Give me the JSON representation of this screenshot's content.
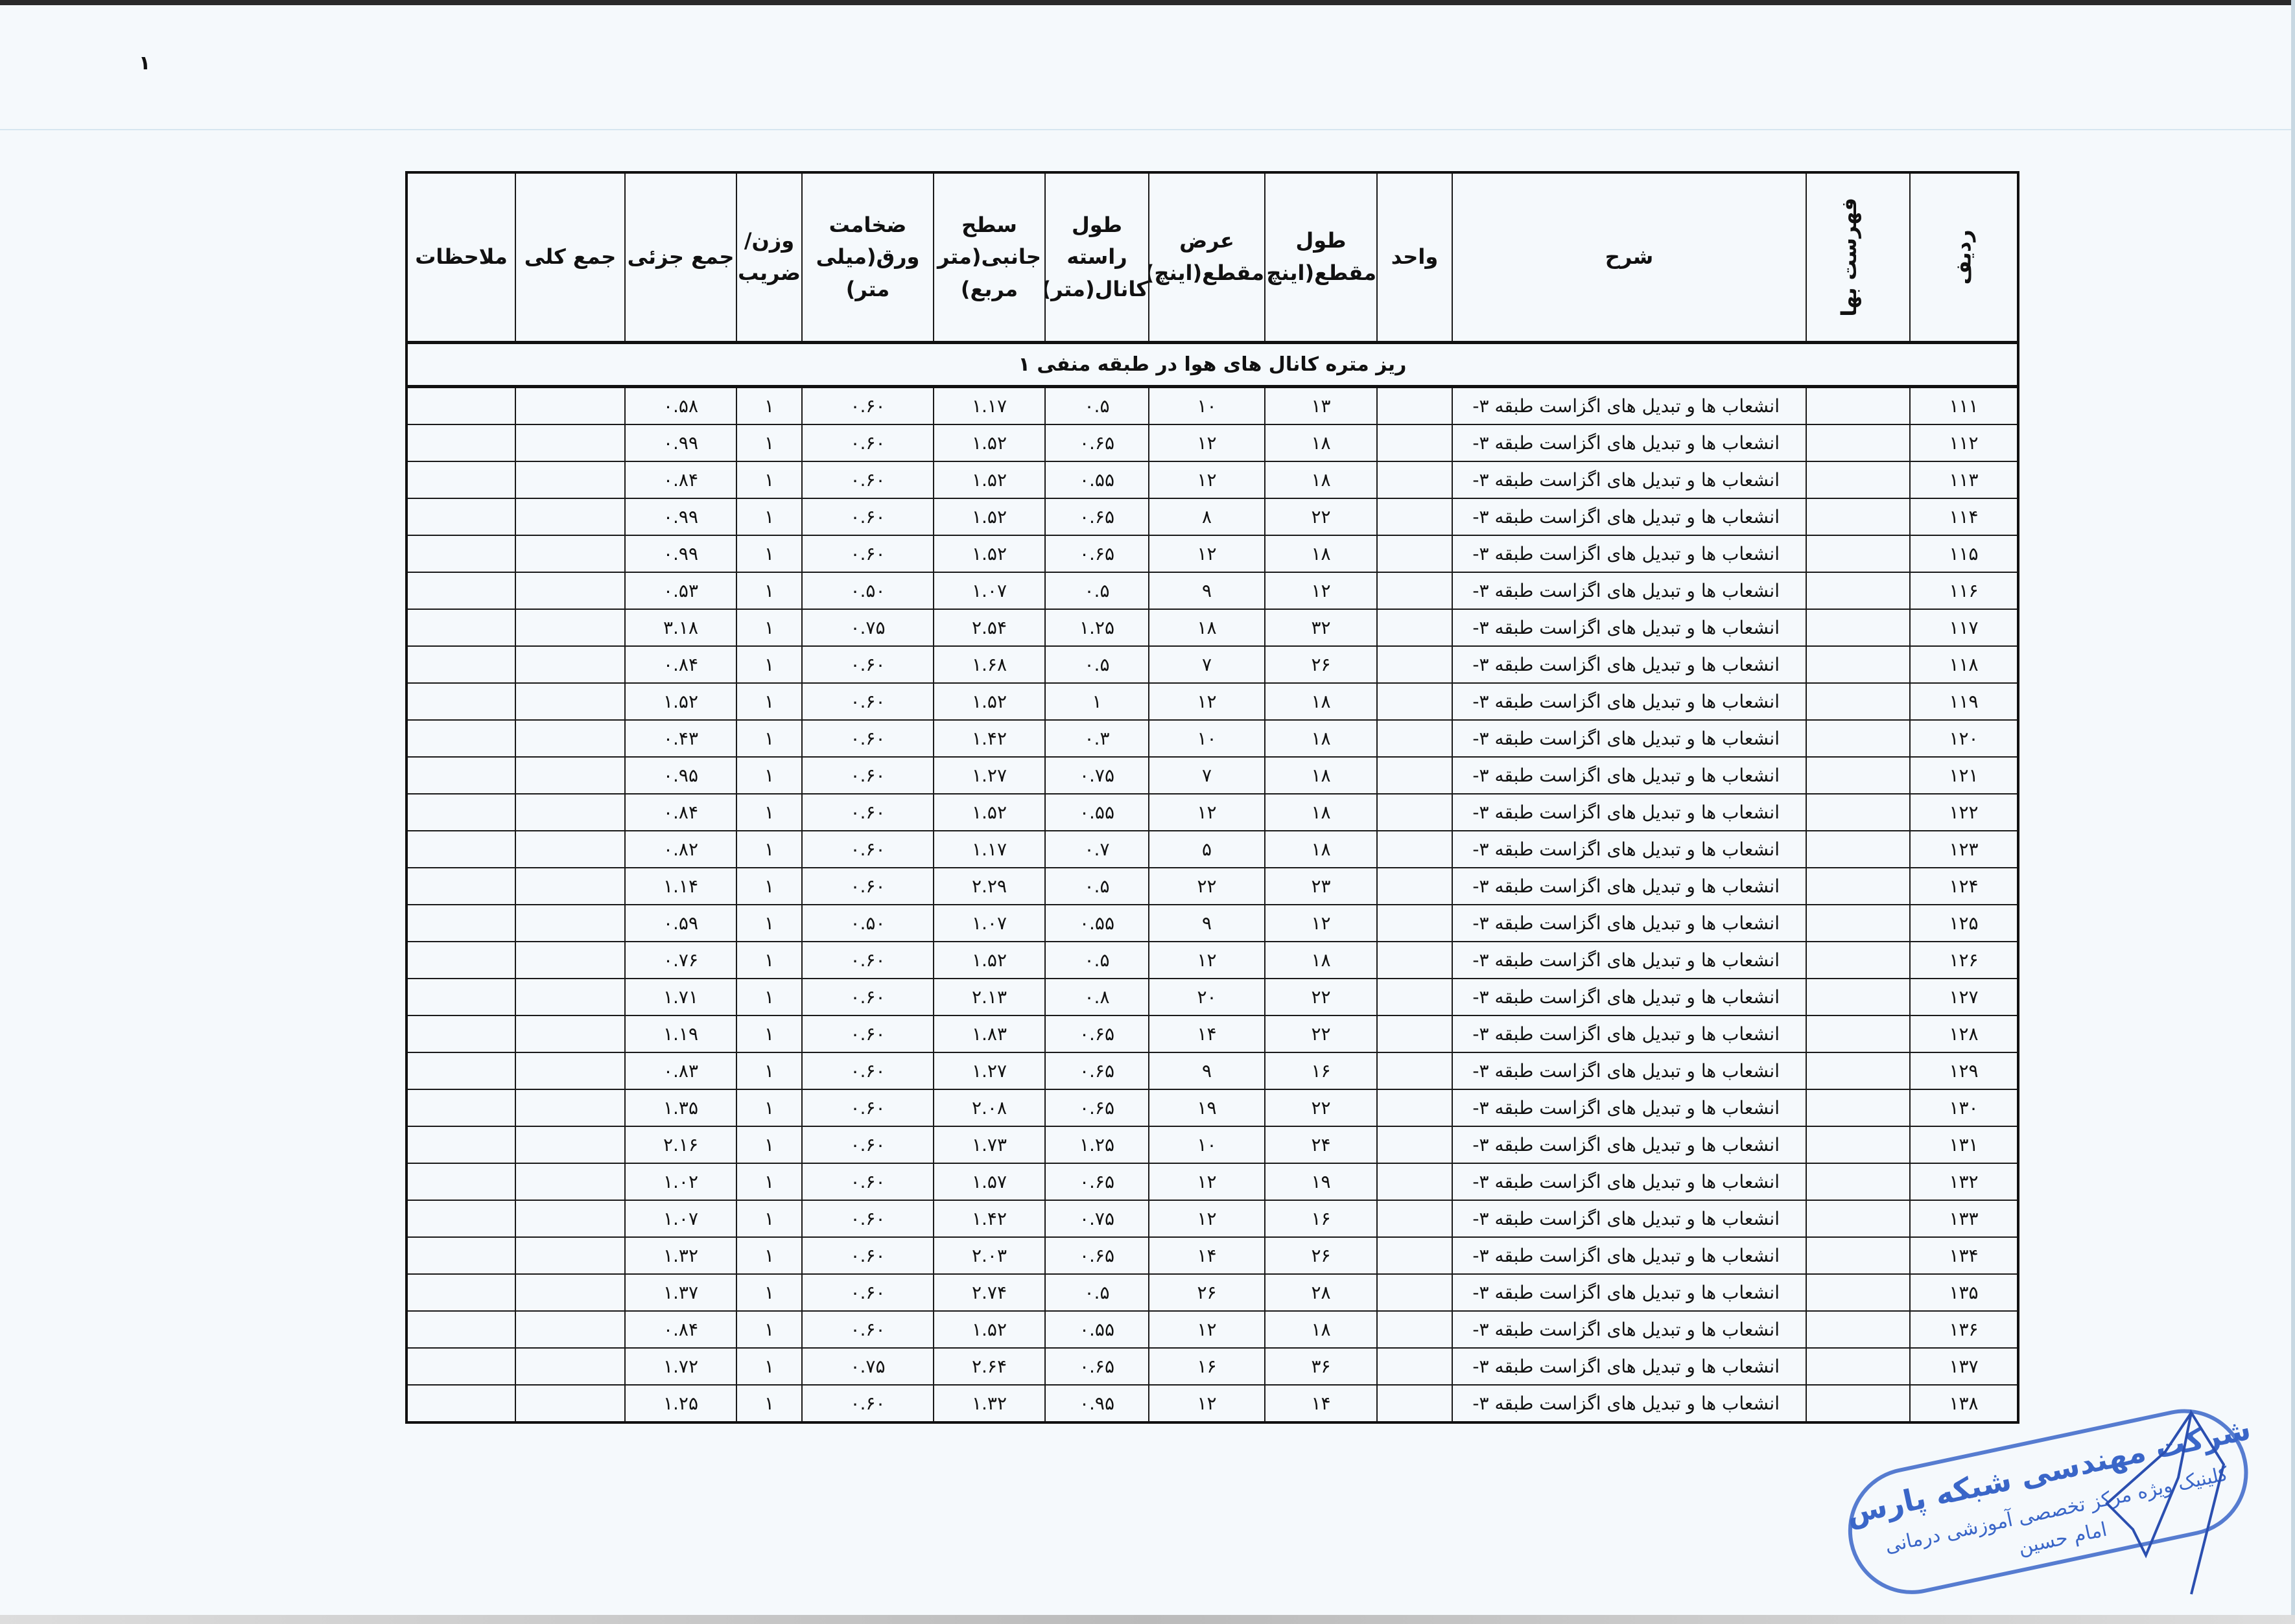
{
  "page_mark": "۱",
  "table": {
    "headers": {
      "radif": "ردیف",
      "fehrest_baha": "فهرست بها",
      "sharh": "شرح",
      "vahed": "واحد",
      "tool_maghta": "طول مقطع(اینچ)",
      "arz_maghta": "عرض مقطع(اینچ)",
      "tool_raste": "طول راسته کانال(متر)",
      "sath_janebi": "سطح جانبی(متر مربع)",
      "zekhamat": "ضخامت ورق(میلی متر)",
      "vazn_zarib": "وزن/ ضریب",
      "jam_jozi": "جمع جزئی",
      "jam_koli": "جمع کلی",
      "molahezat": "ملاحظات"
    },
    "section_title": "ریز متره کانال های هوا در طبقه منفی ۱",
    "rows": [
      [
        "۱۱۱",
        "انشعاب ها و تبدیل های اگزاست طبقه ۳-",
        "۱۳",
        "۱۰",
        "۰.۵",
        "۱.۱۷",
        "۰.۶۰",
        "۱",
        "۰.۵۸"
      ],
      [
        "۱۱۲",
        "انشعاب ها و تبدیل های اگزاست طبقه ۳-",
        "۱۸",
        "۱۲",
        "۰.۶۵",
        "۱.۵۲",
        "۰.۶۰",
        "۱",
        "۰.۹۹"
      ],
      [
        "۱۱۳",
        "انشعاب ها و تبدیل های اگزاست طبقه ۳-",
        "۱۸",
        "۱۲",
        "۰.۵۵",
        "۱.۵۲",
        "۰.۶۰",
        "۱",
        "۰.۸۴"
      ],
      [
        "۱۱۴",
        "انشعاب ها و تبدیل های اگزاست طبقه ۳-",
        "۲۲",
        "۸",
        "۰.۶۵",
        "۱.۵۲",
        "۰.۶۰",
        "۱",
        "۰.۹۹"
      ],
      [
        "۱۱۵",
        "انشعاب ها و تبدیل های اگزاست طبقه ۳-",
        "۱۸",
        "۱۲",
        "۰.۶۵",
        "۱.۵۲",
        "۰.۶۰",
        "۱",
        "۰.۹۹"
      ],
      [
        "۱۱۶",
        "انشعاب ها و تبدیل های اگزاست طبقه ۳-",
        "۱۲",
        "۹",
        "۰.۵",
        "۱.۰۷",
        "۰.۵۰",
        "۱",
        "۰.۵۳"
      ],
      [
        "۱۱۷",
        "انشعاب ها و تبدیل های اگزاست طبقه ۳-",
        "۳۲",
        "۱۸",
        "۱.۲۵",
        "۲.۵۴",
        "۰.۷۵",
        "۱",
        "۳.۱۸"
      ],
      [
        "۱۱۸",
        "انشعاب ها و تبدیل های اگزاست طبقه ۳-",
        "۲۶",
        "۷",
        "۰.۵",
        "۱.۶۸",
        "۰.۶۰",
        "۱",
        "۰.۸۴"
      ],
      [
        "۱۱۹",
        "انشعاب ها و تبدیل های اگزاست طبقه ۳-",
        "۱۸",
        "۱۲",
        "۱",
        "۱.۵۲",
        "۰.۶۰",
        "۱",
        "۱.۵۲"
      ],
      [
        "۱۲۰",
        "انشعاب ها و تبدیل های اگزاست طبقه ۳-",
        "۱۸",
        "۱۰",
        "۰.۳",
        "۱.۴۲",
        "۰.۶۰",
        "۱",
        "۰.۴۳"
      ],
      [
        "۱۲۱",
        "انشعاب ها و تبدیل های اگزاست طبقه ۳-",
        "۱۸",
        "۷",
        "۰.۷۵",
        "۱.۲۷",
        "۰.۶۰",
        "۱",
        "۰.۹۵"
      ],
      [
        "۱۲۲",
        "انشعاب ها و تبدیل های اگزاست طبقه ۳-",
        "۱۸",
        "۱۲",
        "۰.۵۵",
        "۱.۵۲",
        "۰.۶۰",
        "۱",
        "۰.۸۴"
      ],
      [
        "۱۲۳",
        "انشعاب ها و تبدیل های اگزاست طبقه ۳-",
        "۱۸",
        "۵",
        "۰.۷",
        "۱.۱۷",
        "۰.۶۰",
        "۱",
        "۰.۸۲"
      ],
      [
        "۱۲۴",
        "انشعاب ها و تبدیل های اگزاست طبقه ۳-",
        "۲۳",
        "۲۲",
        "۰.۵",
        "۲.۲۹",
        "۰.۶۰",
        "۱",
        "۱.۱۴"
      ],
      [
        "۱۲۵",
        "انشعاب ها و تبدیل های اگزاست طبقه ۳-",
        "۱۲",
        "۹",
        "۰.۵۵",
        "۱.۰۷",
        "۰.۵۰",
        "۱",
        "۰.۵۹"
      ],
      [
        "۱۲۶",
        "انشعاب ها و تبدیل های اگزاست طبقه ۳-",
        "۱۸",
        "۱۲",
        "۰.۵",
        "۱.۵۲",
        "۰.۶۰",
        "۱",
        "۰.۷۶"
      ],
      [
        "۱۲۷",
        "انشعاب ها و تبدیل های اگزاست طبقه ۳-",
        "۲۲",
        "۲۰",
        "۰.۸",
        "۲.۱۳",
        "۰.۶۰",
        "۱",
        "۱.۷۱"
      ],
      [
        "۱۲۸",
        "انشعاب ها و تبدیل های اگزاست طبقه ۳-",
        "۲۲",
        "۱۴",
        "۰.۶۵",
        "۱.۸۳",
        "۰.۶۰",
        "۱",
        "۱.۱۹"
      ],
      [
        "۱۲۹",
        "انشعاب ها و تبدیل های اگزاست طبقه ۳-",
        "۱۶",
        "۹",
        "۰.۶۵",
        "۱.۲۷",
        "۰.۶۰",
        "۱",
        "۰.۸۳"
      ],
      [
        "۱۳۰",
        "انشعاب ها و تبدیل های اگزاست طبقه ۳-",
        "۲۲",
        "۱۹",
        "۰.۶۵",
        "۲.۰۸",
        "۰.۶۰",
        "۱",
        "۱.۳۵"
      ],
      [
        "۱۳۱",
        "انشعاب ها و تبدیل های اگزاست طبقه ۳-",
        "۲۴",
        "۱۰",
        "۱.۲۵",
        "۱.۷۳",
        "۰.۶۰",
        "۱",
        "۲.۱۶"
      ],
      [
        "۱۳۲",
        "انشعاب ها و تبدیل های اگزاست طبقه ۳-",
        "۱۹",
        "۱۲",
        "۰.۶۵",
        "۱.۵۷",
        "۰.۶۰",
        "۱",
        "۱.۰۲"
      ],
      [
        "۱۳۳",
        "انشعاب ها و تبدیل های اگزاست طبقه ۳-",
        "۱۶",
        "۱۲",
        "۰.۷۵",
        "۱.۴۲",
        "۰.۶۰",
        "۱",
        "۱.۰۷"
      ],
      [
        "۱۳۴",
        "انشعاب ها و تبدیل های اگزاست طبقه ۳-",
        "۲۶",
        "۱۴",
        "۰.۶۵",
        "۲.۰۳",
        "۰.۶۰",
        "۱",
        "۱.۳۲"
      ],
      [
        "۱۳۵",
        "انشعاب ها و تبدیل های اگزاست طبقه ۳-",
        "۲۸",
        "۲۶",
        "۰.۵",
        "۲.۷۴",
        "۰.۶۰",
        "۱",
        "۱.۳۷"
      ],
      [
        "۱۳۶",
        "انشعاب ها و تبدیل های اگزاست طبقه ۳-",
        "۱۸",
        "۱۲",
        "۰.۵۵",
        "۱.۵۲",
        "۰.۶۰",
        "۱",
        "۰.۸۴"
      ],
      [
        "۱۳۷",
        "انشعاب ها و تبدیل های اگزاست طبقه ۳-",
        "۳۶",
        "۱۶",
        "۰.۶۵",
        "۲.۶۴",
        "۰.۷۵",
        "۱",
        "۱.۷۲"
      ],
      [
        "۱۳۸",
        "انشعاب ها و تبدیل های اگزاست طبقه ۳-",
        "۱۴",
        "۱۲",
        "۰.۹۵",
        "۱.۳۲",
        "۰.۶۰",
        "۱",
        "۱.۲۵"
      ]
    ]
  },
  "stamp": {
    "line1": "شرکت مهندسی شبکه پارس",
    "line2": "کلینیک ویژه مرکز تخصصی آموزشی درمانی",
    "line3": "امام حسین",
    "color": "#3a66c8"
  }
}
